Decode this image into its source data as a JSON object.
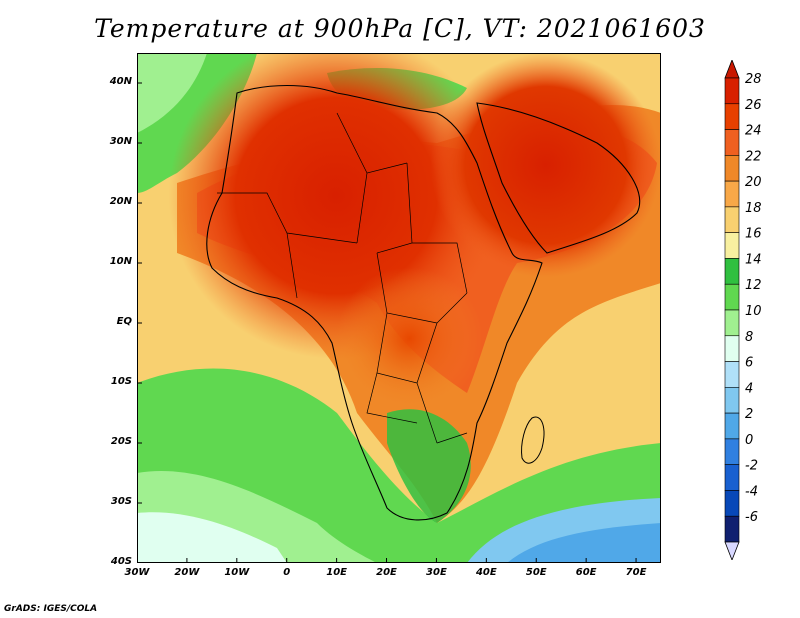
{
  "title": "Temperature at 900hPa [C], VT: 2021061603",
  "credit": "GrADS: IGES/COLA",
  "map": {
    "projection": "latlon",
    "lon_range": [
      -30,
      75
    ],
    "lat_range": [
      -40,
      45
    ],
    "lat_ticks": [
      "40N",
      "30N",
      "20N",
      "10N",
      "EQ",
      "10S",
      "20S",
      "30S",
      "40S"
    ],
    "lat_tick_values": [
      40,
      30,
      20,
      10,
      0,
      -10,
      -20,
      -30,
      -40
    ],
    "lon_ticks": [
      "30W",
      "20W",
      "10W",
      "0",
      "10E",
      "20E",
      "30E",
      "40E",
      "50E",
      "60E",
      "70E"
    ],
    "lon_tick_values": [
      -30,
      -20,
      -10,
      0,
      10,
      20,
      30,
      40,
      50,
      60,
      70
    ],
    "field": "temperature",
    "level": "900hPa",
    "units": "C"
  },
  "colorbar": {
    "labels": [
      "28",
      "26",
      "24",
      "22",
      "20",
      "18",
      "16",
      "14",
      "12",
      "10",
      "8",
      "6",
      "4",
      "2",
      "0",
      "-2",
      "-4",
      "-6"
    ],
    "colors": [
      "#d82000",
      "#e84000",
      "#f06020",
      "#f08828",
      "#f8a848",
      "#f8d070",
      "#f8f0a0",
      "#30c040",
      "#60d850",
      "#a0f090",
      "#e0fff0",
      "#b0e0f8",
      "#80c8f0",
      "#50a8e8",
      "#3080e0",
      "#1860d0",
      "#0848b8",
      "#102070"
    ],
    "over_color": "#c81800",
    "under_color": "#d8d8ff"
  }
}
